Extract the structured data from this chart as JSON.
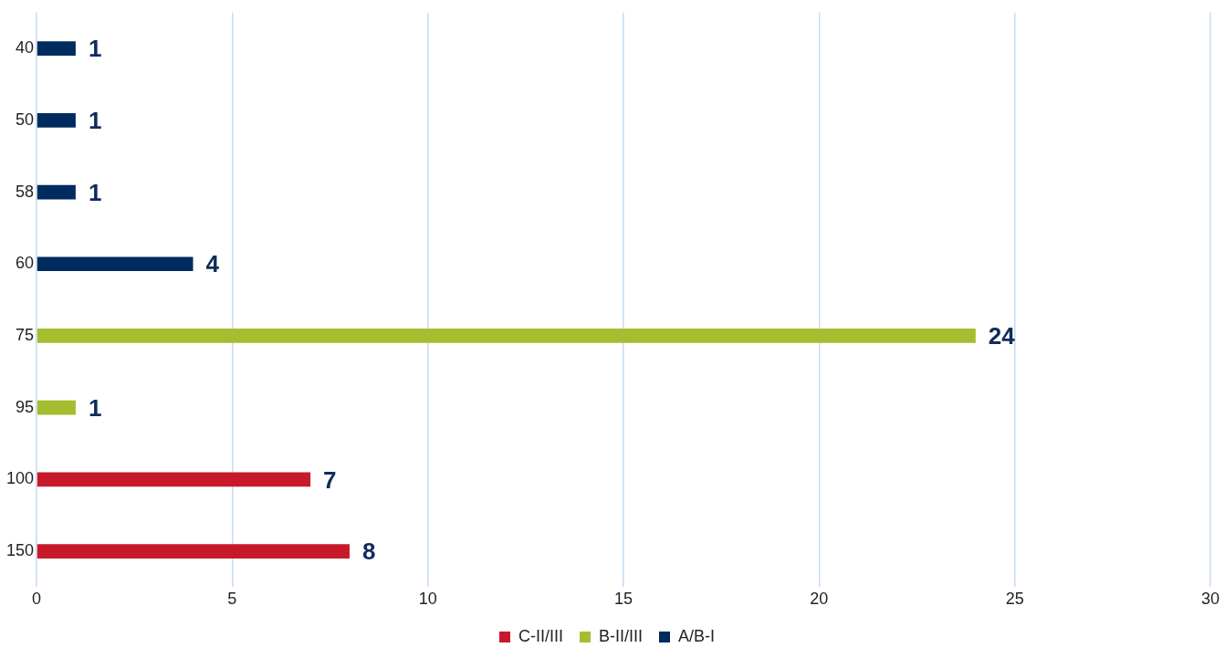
{
  "chart_data": {
    "type": "bar",
    "orientation": "horizontal",
    "stacked": true,
    "categories": [
      "40",
      "50",
      "58",
      "60",
      "75",
      "95",
      "100",
      "150"
    ],
    "series": [
      {
        "name": "C-II/III",
        "color": "#c8192b",
        "values": [
          null,
          null,
          null,
          null,
          null,
          null,
          7,
          8
        ]
      },
      {
        "name": "B-II/III",
        "color": "#a5bd2e",
        "values": [
          null,
          null,
          null,
          null,
          24,
          1,
          null,
          null
        ]
      },
      {
        "name": "A/B-I",
        "color": "#002b5f",
        "values": [
          1,
          1,
          1,
          4,
          null,
          null,
          null,
          null
        ]
      }
    ],
    "xlim": [
      0,
      30
    ],
    "xticks": [
      0,
      5,
      10,
      15,
      20,
      25,
      30
    ],
    "grid": "x",
    "legend": "bottom",
    "data_labels": true
  }
}
